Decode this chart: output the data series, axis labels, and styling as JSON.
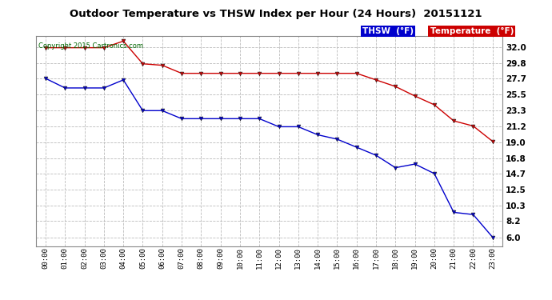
{
  "title": "Outdoor Temperature vs THSW Index per Hour (24 Hours)  20151121",
  "copyright": "Copyright 2015 Cartronics.com",
  "x_labels": [
    "00:00",
    "01:00",
    "02:00",
    "03:00",
    "04:00",
    "05:00",
    "06:00",
    "07:00",
    "08:00",
    "09:00",
    "10:00",
    "11:00",
    "12:00",
    "13:00",
    "14:00",
    "15:00",
    "16:00",
    "17:00",
    "18:00",
    "19:00",
    "20:00",
    "21:00",
    "22:00",
    "23:00"
  ],
  "temperature": [
    31.9,
    31.9,
    31.9,
    31.9,
    32.8,
    29.7,
    29.5,
    28.4,
    28.4,
    28.4,
    28.4,
    28.4,
    28.4,
    28.4,
    28.4,
    28.4,
    28.4,
    27.5,
    26.6,
    25.3,
    24.1,
    21.9,
    21.2,
    19.1
  ],
  "thsw": [
    27.7,
    26.4,
    26.4,
    26.4,
    27.5,
    23.3,
    23.3,
    22.2,
    22.2,
    22.2,
    22.2,
    22.2,
    21.1,
    21.1,
    20.0,
    19.4,
    18.3,
    17.2,
    15.5,
    16.0,
    14.7,
    9.4,
    9.1,
    6.0
  ],
  "y_ticks": [
    6.0,
    8.2,
    10.3,
    12.5,
    14.7,
    16.8,
    19.0,
    21.2,
    23.3,
    25.5,
    27.7,
    29.8,
    32.0
  ],
  "y_min": 4.8,
  "y_max": 33.5,
  "temp_color": "#cc0000",
  "thsw_color": "#0000cc",
  "bg_color": "#ffffff",
  "plot_bg_color": "#ffffff",
  "grid_color": "#bbbbbb",
  "legend_thsw_bg": "#0000cc",
  "legend_temp_bg": "#cc0000",
  "legend_thsw_label": "THSW  (°F)",
  "legend_temp_label": "Temperature  (°F)"
}
